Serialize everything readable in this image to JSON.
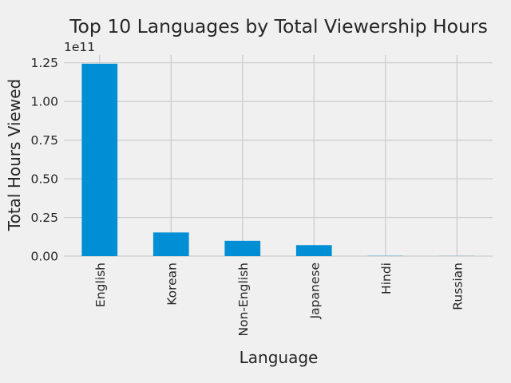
{
  "chart_data": {
    "type": "bar",
    "title": "Top 10 Languages by Total Viewership Hours",
    "xlabel": "Language",
    "ylabel": "Total Hours Viewed",
    "y_offset_label": "1e11",
    "categories": [
      "English",
      "Korean",
      "Non-English",
      "Japanese",
      "Hindi",
      "Russian"
    ],
    "values": [
      124400000000,
      15300000000,
      9900000000,
      7100000000,
      150000000,
      80000000
    ],
    "ylim": [
      0,
      130000000000
    ],
    "y_ticks": [
      0,
      25000000000,
      50000000000,
      75000000000,
      100000000000,
      125000000000
    ],
    "y_tick_labels": [
      "0.00",
      "0.25",
      "0.50",
      "0.75",
      "1.00",
      "1.25"
    ],
    "grid": true,
    "legend": "none",
    "colors": {
      "bar": "#008fd5",
      "background": "#f0f0f0",
      "grid": "#cbcbcb",
      "text": "#262626"
    }
  }
}
